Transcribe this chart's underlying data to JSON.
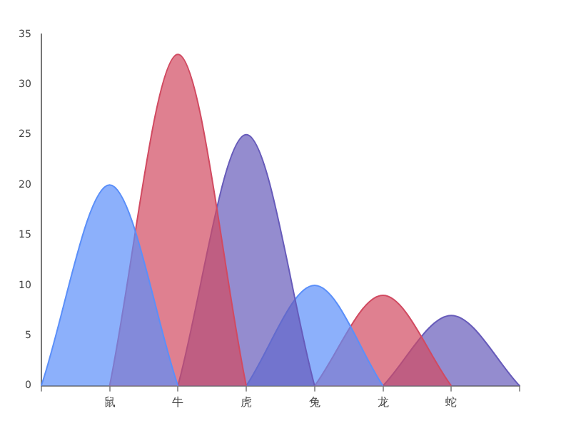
{
  "chart_data": {
    "type": "area",
    "categories": [
      null,
      "鼠",
      "牛",
      "虎",
      "兔",
      "龙",
      "蛇",
      null
    ],
    "series": [
      {
        "color": "#5b8ff9",
        "values": [
          0,
          20,
          0,
          null,
          null,
          null,
          null,
          null
        ]
      },
      {
        "color": "#d14a61",
        "values": [
          null,
          0,
          33,
          0,
          null,
          null,
          null,
          null
        ]
      },
      {
        "color": "#675bba",
        "values": [
          null,
          null,
          0,
          25,
          0,
          null,
          null,
          null
        ]
      },
      {
        "color": "#5b8ff9",
        "values": [
          null,
          null,
          null,
          0,
          10,
          0,
          null,
          null
        ]
      },
      {
        "color": "#d14a61",
        "values": [
          null,
          null,
          null,
          null,
          0,
          9,
          0,
          null
        ]
      },
      {
        "color": "#675bba",
        "values": [
          null,
          null,
          null,
          null,
          null,
          0,
          7,
          0
        ]
      }
    ],
    "ylim": [
      0,
      35
    ],
    "yticks": [
      0,
      5,
      10,
      15,
      20,
      25,
      30,
      35
    ],
    "grid": false,
    "legend": false
  }
}
